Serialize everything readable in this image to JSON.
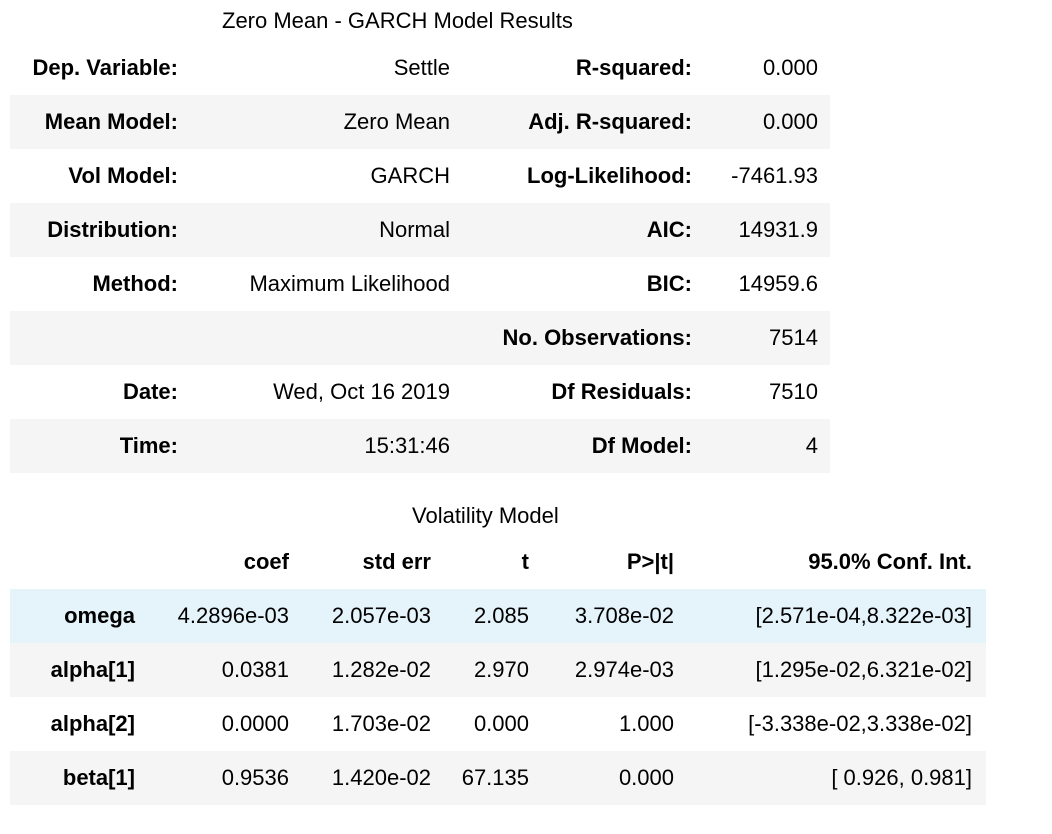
{
  "summary_table": {
    "caption": "Zero Mean - GARCH Model Results",
    "rows": [
      {
        "l1": "Dep. Variable:",
        "v1": "Settle",
        "l2": "R-squared:",
        "v2": "0.000"
      },
      {
        "l1": "Mean Model:",
        "v1": "Zero Mean",
        "l2": "Adj. R-squared:",
        "v2": "0.000"
      },
      {
        "l1": "Vol Model:",
        "v1": "GARCH",
        "l2": "Log-Likelihood:",
        "v2": "-7461.93"
      },
      {
        "l1": "Distribution:",
        "v1": "Normal",
        "l2": "AIC:",
        "v2": "14931.9"
      },
      {
        "l1": "Method:",
        "v1": "Maximum Likelihood",
        "l2": "BIC:",
        "v2": "14959.6"
      },
      {
        "l1": "",
        "v1": "",
        "l2": "No. Observations:",
        "v2": "7514"
      },
      {
        "l1": "Date:",
        "v1": "Wed, Oct 16 2019",
        "l2": "Df Residuals:",
        "v2": "7510"
      },
      {
        "l1": "Time:",
        "v1": "15:31:46",
        "l2": "Df Model:",
        "v2": "4"
      }
    ]
  },
  "volatility_table": {
    "caption": "Volatility Model",
    "columns": [
      "",
      "coef",
      "std err",
      "t",
      "P>|t|",
      "95.0% Conf. Int."
    ],
    "rows": [
      {
        "name": "omega",
        "coef": "4.2896e-03",
        "std_err": "2.057e-03",
        "t": "2.085",
        "p": "3.708e-02",
        "ci": "[2.571e-04,8.322e-03]"
      },
      {
        "name": "alpha[1]",
        "coef": "0.0381",
        "std_err": "1.282e-02",
        "t": "2.970",
        "p": "2.974e-03",
        "ci": "[1.295e-02,6.321e-02]"
      },
      {
        "name": "alpha[2]",
        "coef": "0.0000",
        "std_err": "1.703e-02",
        "t": "0.000",
        "p": "1.000",
        "ci": "[-3.338e-02,3.338e-02]"
      },
      {
        "name": "beta[1]",
        "coef": "0.9536",
        "std_err": "1.420e-02",
        "t": "67.135",
        "p": "0.000",
        "ci": "[ 0.926, 0.981]"
      }
    ]
  },
  "colors": {
    "stripe": "#f5f5f5",
    "hover_highlight": "#e5f3fb"
  }
}
